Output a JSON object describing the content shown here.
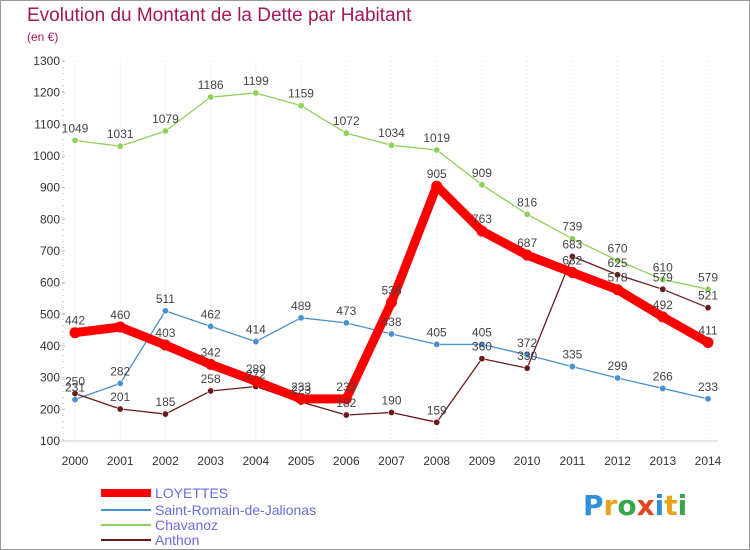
{
  "header": {
    "title": "Evolution du Montant de la Dette par Habitant",
    "subtitle": "(en €)"
  },
  "brand": {
    "logo_text": "Proxiti"
  },
  "chart_data": {
    "type": "line",
    "title": "Evolution du Montant de la Dette par Habitant",
    "subtitle": "(en €)",
    "xlabel": "",
    "ylabel": "",
    "x": [
      "2000",
      "2001",
      "2002",
      "2003",
      "2004",
      "2005",
      "2006",
      "2007",
      "2008",
      "2009",
      "2010",
      "2011",
      "2012",
      "2013",
      "2014"
    ],
    "ylim": [
      100,
      1300
    ],
    "yticks": [
      100,
      200,
      300,
      400,
      500,
      600,
      700,
      800,
      900,
      1000,
      1100,
      1200,
      1300
    ],
    "grid": "vertical dotted",
    "legend_position": "bottom-left",
    "series": [
      {
        "name": "LOYETTES",
        "color": "#ff0000",
        "emphasis": true,
        "values": [
          442,
          460,
          403,
          342,
          289,
          233,
          233,
          538,
          905,
          763,
          687,
          632,
          578,
          492,
          411
        ]
      },
      {
        "name": "Saint-Romain-de-Jalionas",
        "color": "#4a90cf",
        "values": [
          231,
          282,
          511,
          462,
          414,
          489,
          473,
          438,
          405,
          405,
          372,
          335,
          299,
          266,
          233
        ]
      },
      {
        "name": "Chavanoz",
        "color": "#8fd05a",
        "values": [
          1049,
          1031,
          1079,
          1186,
          1199,
          1159,
          1072,
          1034,
          1019,
          909,
          816,
          739,
          670,
          610,
          579
        ]
      },
      {
        "name": "Anthon",
        "color": "#6b1a1a",
        "values": [
          250,
          201,
          185,
          258,
          272,
          223,
          182,
          190,
          159,
          360,
          330,
          683,
          625,
          579,
          521
        ]
      }
    ]
  }
}
